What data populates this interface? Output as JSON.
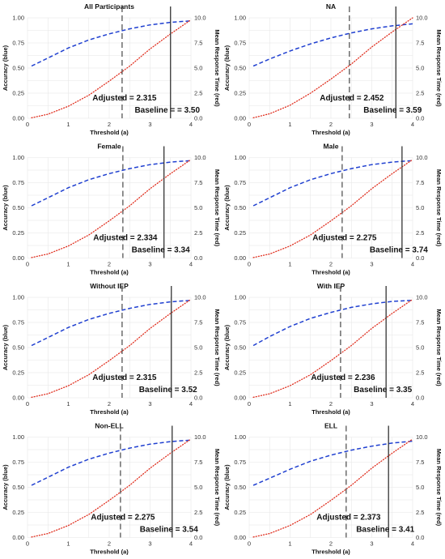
{
  "chart_data": [
    {
      "type": "line",
      "title": "All Participants",
      "xlabel": "Threshold (a)",
      "ylabel": "Accuracy (blue)",
      "y2label": "Mean Response Time (red)",
      "xlim": [
        0,
        4
      ],
      "ylim": [
        0,
        1
      ],
      "y2lim": [
        0,
        10
      ],
      "xticks": [
        "0",
        "1",
        "2",
        "3",
        "4"
      ],
      "yticks": [
        "0.00",
        "0.25",
        "0.50",
        "0.75",
        "1.00"
      ],
      "y2ticks": [
        "0.0",
        "2.5",
        "5.0",
        "7.5",
        "10.0"
      ],
      "grid": true,
      "series": [
        {
          "color": "#2040d0",
          "style": "dashed",
          "axis": "left",
          "x": [
            0.1,
            0.5,
            1,
            1.5,
            2,
            2.5,
            3,
            3.5,
            4
          ],
          "y": [
            0.52,
            0.6,
            0.7,
            0.78,
            0.84,
            0.89,
            0.93,
            0.955,
            0.97
          ]
        },
        {
          "color": "#e03020",
          "style": "dotted",
          "axis": "right",
          "x": [
            0.1,
            0.5,
            1,
            1.5,
            2,
            2.5,
            3,
            3.5,
            4
          ],
          "y": [
            0.05,
            0.4,
            1.2,
            2.3,
            3.7,
            5.2,
            6.9,
            8.4,
            9.8
          ]
        }
      ],
      "vlines": [
        {
          "x": 2.315,
          "style": "dashed",
          "label": "Adjusted = 2.315"
        },
        {
          "x": 3.5,
          "style": "solid",
          "label": "Baseline =  = 3.50"
        }
      ]
    },
    {
      "type": "line",
      "title": "NA",
      "xlabel": "Threshold (a)",
      "ylabel": "Accuracy (blue)",
      "y2label": "Mean Response Time (red)",
      "xlim": [
        0,
        4
      ],
      "ylim": [
        0,
        1
      ],
      "y2lim": [
        0,
        10
      ],
      "xticks": [
        "0",
        "1",
        "2",
        "3",
        "4"
      ],
      "yticks": [
        "0.00",
        "0.25",
        "0.50",
        "0.75",
        "1.00"
      ],
      "y2ticks": [
        "0.0",
        "2.5",
        "5.0",
        "7.5",
        "10.0"
      ],
      "grid": true,
      "series": [
        {
          "color": "#2040d0",
          "style": "dashed",
          "axis": "left",
          "x": [
            0.1,
            0.5,
            1,
            1.5,
            2,
            2.5,
            3,
            3.5,
            4
          ],
          "y": [
            0.52,
            0.59,
            0.67,
            0.74,
            0.8,
            0.85,
            0.89,
            0.92,
            0.94
          ]
        },
        {
          "color": "#e03020",
          "style": "dotted",
          "axis": "right",
          "x": [
            0.1,
            0.5,
            1,
            1.5,
            2,
            2.5,
            3,
            3.5,
            4
          ],
          "y": [
            0.05,
            0.45,
            1.3,
            2.5,
            3.9,
            5.4,
            7.1,
            8.6,
            10.0
          ]
        }
      ],
      "vlines": [
        {
          "x": 2.452,
          "style": "dashed",
          "label": "Adjusted = 2.452"
        },
        {
          "x": 3.59,
          "style": "solid",
          "label": "Baseline = 3.59"
        }
      ]
    },
    {
      "type": "line",
      "title": "Female",
      "xlabel": "Threshold (a)",
      "ylabel": "Accuracy (blue)",
      "y2label": "Mean Response Time (red)",
      "xlim": [
        0,
        4
      ],
      "ylim": [
        0,
        1
      ],
      "y2lim": [
        0,
        10
      ],
      "xticks": [
        "0",
        "1",
        "2",
        "3",
        "4"
      ],
      "yticks": [
        "0.00",
        "0.25",
        "0.50",
        "0.75",
        "1.00"
      ],
      "y2ticks": [
        "0.0",
        "2.5",
        "5.0",
        "7.5",
        "10.0"
      ],
      "grid": true,
      "series": [
        {
          "color": "#2040d0",
          "style": "dashed",
          "axis": "left",
          "x": [
            0.1,
            0.5,
            1,
            1.5,
            2,
            2.5,
            3,
            3.5,
            4
          ],
          "y": [
            0.52,
            0.6,
            0.7,
            0.78,
            0.84,
            0.89,
            0.93,
            0.955,
            0.97
          ]
        },
        {
          "color": "#e03020",
          "style": "dotted",
          "axis": "right",
          "x": [
            0.1,
            0.5,
            1,
            1.5,
            2,
            2.5,
            3,
            3.5,
            4
          ],
          "y": [
            0.05,
            0.4,
            1.2,
            2.3,
            3.7,
            5.2,
            6.9,
            8.4,
            9.8
          ]
        }
      ],
      "vlines": [
        {
          "x": 2.334,
          "style": "dashed",
          "label": "Adjusted = 2.334"
        },
        {
          "x": 3.34,
          "style": "solid",
          "label": "Baseline = 3.34"
        }
      ]
    },
    {
      "type": "line",
      "title": "Male",
      "xlabel": "Threshold (a)",
      "ylabel": "Accuracy (blue)",
      "y2label": "Mean Response Time (red)",
      "xlim": [
        0,
        4
      ],
      "ylim": [
        0,
        1
      ],
      "y2lim": [
        0,
        10
      ],
      "xticks": [
        "0",
        "1",
        "2",
        "3",
        "4"
      ],
      "yticks": [
        "0.00",
        "0.25",
        "0.50",
        "0.75",
        "1.00"
      ],
      "y2ticks": [
        "0.0",
        "2.5",
        "5.0",
        "7.5",
        "10.0"
      ],
      "grid": true,
      "series": [
        {
          "color": "#2040d0",
          "style": "dashed",
          "axis": "left",
          "x": [
            0.1,
            0.5,
            1,
            1.5,
            2,
            2.5,
            3,
            3.5,
            4
          ],
          "y": [
            0.52,
            0.6,
            0.7,
            0.78,
            0.84,
            0.89,
            0.93,
            0.955,
            0.97
          ]
        },
        {
          "color": "#e03020",
          "style": "dotted",
          "axis": "right",
          "x": [
            0.1,
            0.5,
            1,
            1.5,
            2,
            2.5,
            3,
            3.5,
            4
          ],
          "y": [
            0.05,
            0.4,
            1.2,
            2.3,
            3.7,
            5.2,
            6.9,
            8.4,
            9.8
          ]
        }
      ],
      "vlines": [
        {
          "x": 2.275,
          "style": "dashed",
          "label": "Adjusted = 2.275"
        },
        {
          "x": 3.74,
          "style": "solid",
          "label": "Baseline = 3.74"
        }
      ]
    },
    {
      "type": "line",
      "title": "Without IEP",
      "xlabel": "Threshold (a)",
      "ylabel": "Accuracy (blue)",
      "y2label": "Mean Response Time (red)",
      "xlim": [
        0,
        4
      ],
      "ylim": [
        0,
        1
      ],
      "y2lim": [
        0,
        10
      ],
      "xticks": [
        "0",
        "1",
        "2",
        "3",
        "4"
      ],
      "yticks": [
        "0.00",
        "0.25",
        "0.50",
        "0.75",
        "1.00"
      ],
      "y2ticks": [
        "0.0",
        "2.5",
        "5.0",
        "7.5",
        "10.0"
      ],
      "grid": true,
      "series": [
        {
          "color": "#2040d0",
          "style": "dashed",
          "axis": "left",
          "x": [
            0.1,
            0.5,
            1,
            1.5,
            2,
            2.5,
            3,
            3.5,
            4
          ],
          "y": [
            0.52,
            0.6,
            0.7,
            0.78,
            0.84,
            0.89,
            0.93,
            0.955,
            0.97
          ]
        },
        {
          "color": "#e03020",
          "style": "dotted",
          "axis": "right",
          "x": [
            0.1,
            0.5,
            1,
            1.5,
            2,
            2.5,
            3,
            3.5,
            4
          ],
          "y": [
            0.05,
            0.4,
            1.2,
            2.3,
            3.7,
            5.2,
            6.9,
            8.4,
            9.8
          ]
        }
      ],
      "vlines": [
        {
          "x": 2.315,
          "style": "dashed",
          "label": "Adjusted = 2.315"
        },
        {
          "x": 3.52,
          "style": "solid",
          "label": "Baseline = 3.52"
        }
      ]
    },
    {
      "type": "line",
      "title": "With IEP",
      "xlabel": "Threshold (a)",
      "ylabel": "Accuracy (blue)",
      "y2label": "Mean Response Time (red)",
      "xlim": [
        0,
        4
      ],
      "ylim": [
        0,
        1
      ],
      "y2lim": [
        0,
        10
      ],
      "xticks": [
        "0",
        "1",
        "2",
        "3",
        "4"
      ],
      "yticks": [
        "0.00",
        "0.25",
        "0.50",
        "0.75",
        "1.00"
      ],
      "y2ticks": [
        "0.0",
        "2.5",
        "5.0",
        "7.5",
        "10.0"
      ],
      "grid": true,
      "series": [
        {
          "color": "#2040d0",
          "style": "dashed",
          "axis": "left",
          "x": [
            0.1,
            0.5,
            1,
            1.5,
            2,
            2.5,
            3,
            3.5,
            4
          ],
          "y": [
            0.52,
            0.61,
            0.71,
            0.79,
            0.85,
            0.9,
            0.935,
            0.96,
            0.97
          ]
        },
        {
          "color": "#e03020",
          "style": "dotted",
          "axis": "right",
          "x": [
            0.1,
            0.5,
            1,
            1.5,
            2,
            2.5,
            3,
            3.5,
            4
          ],
          "y": [
            0.05,
            0.4,
            1.2,
            2.3,
            3.7,
            5.2,
            6.9,
            8.4,
            9.8
          ]
        }
      ],
      "vlines": [
        {
          "x": 2.236,
          "style": "dashed",
          "label": "Adjusted = 2.236"
        },
        {
          "x": 3.35,
          "style": "solid",
          "label": "Baseline = 3.35"
        }
      ]
    },
    {
      "type": "line",
      "title": "Non-ELL",
      "xlabel": "Threshold (a)",
      "ylabel": "Accuracy (blue)",
      "y2label": "Mean Response Time (red)",
      "xlim": [
        0,
        4
      ],
      "ylim": [
        0,
        1
      ],
      "y2lim": [
        0,
        10
      ],
      "xticks": [
        "0",
        "1",
        "2",
        "3",
        "4"
      ],
      "yticks": [
        "0.00",
        "0.25",
        "0.50",
        "0.75",
        "1.00"
      ],
      "y2ticks": [
        "0.0",
        "2.5",
        "5.0",
        "7.5",
        "10.0"
      ],
      "grid": true,
      "series": [
        {
          "color": "#2040d0",
          "style": "dashed",
          "axis": "left",
          "x": [
            0.1,
            0.5,
            1,
            1.5,
            2,
            2.5,
            3,
            3.5,
            4
          ],
          "y": [
            0.52,
            0.6,
            0.7,
            0.78,
            0.84,
            0.89,
            0.93,
            0.955,
            0.97
          ]
        },
        {
          "color": "#e03020",
          "style": "dotted",
          "axis": "right",
          "x": [
            0.1,
            0.5,
            1,
            1.5,
            2,
            2.5,
            3,
            3.5,
            4
          ],
          "y": [
            0.05,
            0.4,
            1.2,
            2.3,
            3.7,
            5.2,
            6.9,
            8.4,
            9.8
          ]
        }
      ],
      "vlines": [
        {
          "x": 2.275,
          "style": "dashed",
          "label": "Adjusted = 2.275"
        },
        {
          "x": 3.54,
          "style": "solid",
          "label": "Baseline = 3.54"
        }
      ]
    },
    {
      "type": "line",
      "title": "ELL",
      "xlabel": "Threshold (a)",
      "ylabel": "Accuracy (blue)",
      "y2label": "Mean Response Time (red)",
      "xlim": [
        0,
        4
      ],
      "ylim": [
        0,
        1
      ],
      "y2lim": [
        0,
        10
      ],
      "xticks": [
        "0",
        "1",
        "2",
        "3",
        "4"
      ],
      "yticks": [
        "0.00",
        "0.25",
        "0.50",
        "0.75",
        "1.00"
      ],
      "y2ticks": [
        "0.0",
        "2.5",
        "5.0",
        "7.5",
        "10.0"
      ],
      "grid": true,
      "series": [
        {
          "color": "#2040d0",
          "style": "dashed",
          "axis": "left",
          "x": [
            0.1,
            0.5,
            1,
            1.5,
            2,
            2.5,
            3,
            3.5,
            4
          ],
          "y": [
            0.52,
            0.59,
            0.68,
            0.76,
            0.82,
            0.87,
            0.91,
            0.94,
            0.96
          ]
        },
        {
          "color": "#e03020",
          "style": "dotted",
          "axis": "right",
          "x": [
            0.1,
            0.5,
            1,
            1.5,
            2,
            2.5,
            3,
            3.5,
            4
          ],
          "y": [
            0.05,
            0.4,
            1.2,
            2.3,
            3.7,
            5.2,
            6.9,
            8.4,
            9.8
          ]
        }
      ],
      "vlines": [
        {
          "x": 2.373,
          "style": "dashed",
          "label": "Adjusted = 2.373"
        },
        {
          "x": 3.41,
          "style": "solid",
          "label": "Baseline = 3.41"
        }
      ]
    }
  ]
}
